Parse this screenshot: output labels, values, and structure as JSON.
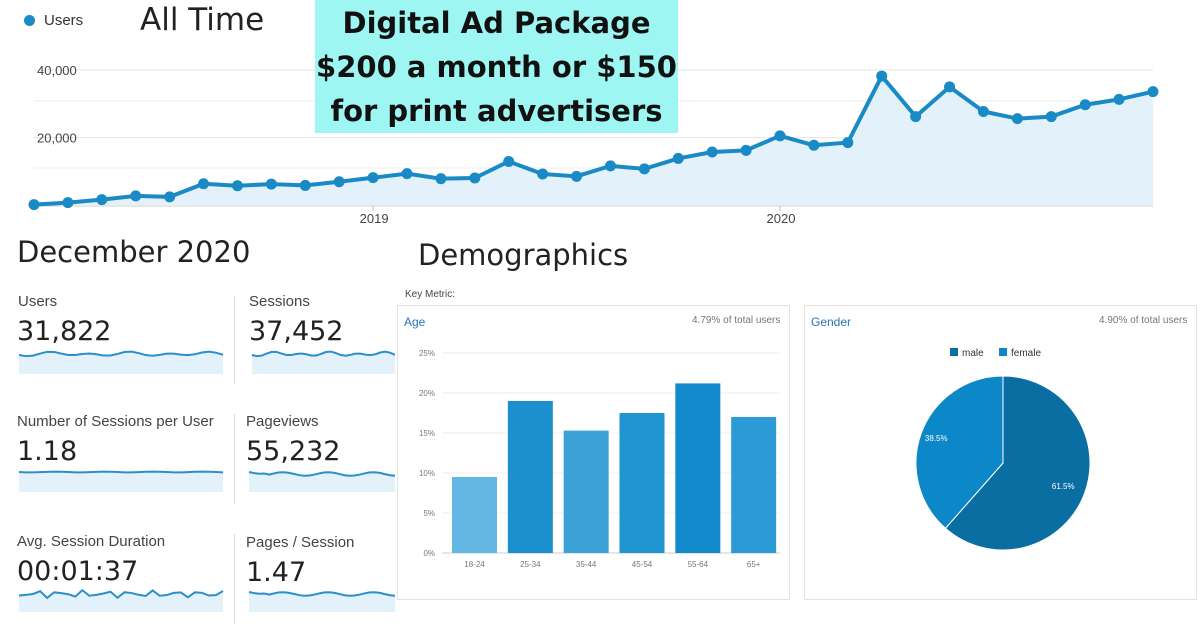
{
  "top": {
    "legend_label": "Users",
    "title": "All Time",
    "banner_lines": [
      "Digital Ad Package",
      "$200 a month or $150",
      "for print advertisers"
    ]
  },
  "colors": {
    "line": "#1a8ac6",
    "area": "#e3f1fb",
    "banner": "#9ef6f3",
    "age_bars": [
      "#63b7e3",
      "#1c8fce",
      "#3ba1d7",
      "#1f96d1",
      "#138acb",
      "#2b9ad5"
    ],
    "gender_male": "#0a6ea3",
    "gender_female": "#0c88c8"
  },
  "december": {
    "title": "December 2020",
    "metrics": [
      {
        "label": "Users",
        "value": "31,822"
      },
      {
        "label": "Sessions",
        "value": "37,452"
      },
      {
        "label": "Number of Sessions per User",
        "value": "1.18"
      },
      {
        "label": "Pageviews",
        "value": "55,232"
      },
      {
        "label": "Avg. Session Duration",
        "value": "00:01:37"
      },
      {
        "label": "Pages / Session",
        "value": "1.47"
      }
    ]
  },
  "demographics": {
    "title": "Demographics",
    "key_metric": "Key Metric:",
    "age_title": "Age",
    "age_note": "4.79% of total users",
    "gender_title": "Gender",
    "gender_note": "4.90% of total users"
  },
  "chart_data": [
    {
      "type": "line",
      "legend": [
        "Users"
      ],
      "x_tick_labels": [
        "2019",
        "2020"
      ],
      "y_tick_labels": [
        "20,000",
        "40,000"
      ],
      "ylim": [
        0,
        40000
      ],
      "grid": true,
      "legend_position": "top-left",
      "series": [
        {
          "name": "Users",
          "values": [
            100,
            700,
            1600,
            2700,
            2400,
            6300,
            5700,
            6200,
            5800,
            6900,
            8100,
            9300,
            7800,
            8000,
            12900,
            9200,
            8500,
            11600,
            10700,
            13800,
            15700,
            16200,
            20500,
            17700,
            18500,
            38200,
            26200,
            35000,
            27700,
            25600,
            26200,
            29700,
            31300,
            33600
          ]
        }
      ]
    },
    {
      "type": "bar",
      "title": "Age",
      "categories": [
        "18-24",
        "25-34",
        "35-44",
        "45-54",
        "55-64",
        "65+"
      ],
      "values": [
        9.5,
        19.0,
        15.3,
        17.5,
        21.2,
        17.0
      ],
      "y_tick_labels": [
        "0%",
        "5%",
        "10%",
        "15%",
        "20%",
        "25%"
      ],
      "ylim": [
        0,
        25
      ],
      "grid": true
    },
    {
      "type": "pie",
      "title": "Gender",
      "categories": [
        "male",
        "female"
      ],
      "values": [
        61.5,
        38.5
      ],
      "slice_labels": [
        "61.5%",
        "38.5%"
      ],
      "legend_position": "top"
    }
  ]
}
